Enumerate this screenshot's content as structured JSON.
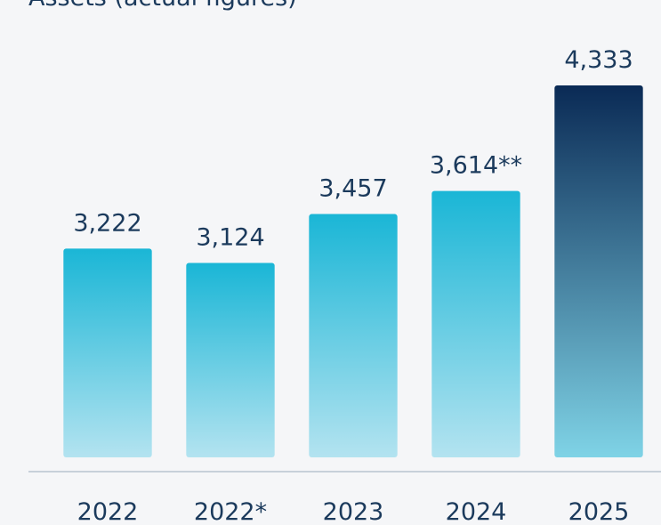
{
  "chart_data": {
    "type": "bar",
    "title": "Assets (actual figures)",
    "categories": [
      "2022",
      "2022*",
      "2023",
      "2024",
      "2025"
    ],
    "values": [
      3222,
      3124,
      3457,
      3614,
      4333
    ],
    "value_labels": [
      "3,222",
      "3,124",
      "3,457",
      "3,614**",
      "4,333"
    ],
    "colors": [
      "#1ab6d6",
      "#1ab6d6",
      "#1ab6d6",
      "#1ab6d6",
      "#0a2a55"
    ],
    "ylim": [
      1800,
      4333
    ]
  }
}
